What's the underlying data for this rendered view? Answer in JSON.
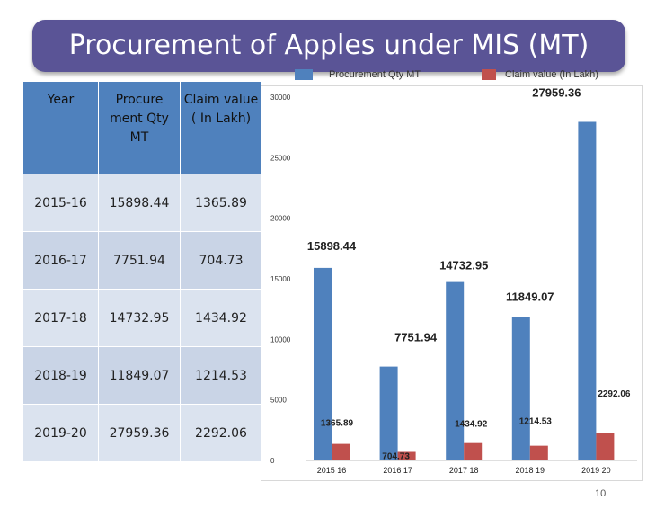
{
  "title": "Procurement of Apples under MIS (MT)",
  "legend": [
    {
      "label": "Procurement Qty MT",
      "color": "#4f81bd"
    },
    {
      "label": "Claim value (In Lakh)",
      "color": "#c0504d"
    }
  ],
  "table": {
    "headers": [
      "Year",
      "Procure ment Qty MT",
      "Claim value ( In Lakh)"
    ],
    "rows": [
      [
        "2015-16",
        "15898.44",
        "1365.89"
      ],
      [
        "2016-17",
        "7751.94",
        "704.73"
      ],
      [
        "2017-18",
        "14732.95",
        "1434.92"
      ],
      [
        "2018-19",
        "11849.07",
        "1214.53"
      ],
      [
        "2019-20",
        "27959.36",
        "2292.06"
      ]
    ]
  },
  "chart_data": {
    "type": "bar",
    "title": "",
    "xlabel": "",
    "ylabel": "",
    "categories": [
      "2015 16",
      "2016 17",
      "2017 18",
      "2018 19",
      "2019 20"
    ],
    "series": [
      {
        "name": "Procurement Qty MT",
        "values": [
          15898.44,
          7751.94,
          14732.95,
          11849.07,
          27959.36
        ],
        "labels": [
          "15898.44",
          "7751.94",
          "14732.95",
          "11849.07",
          "27959.36"
        ],
        "color": "#4f81bd"
      },
      {
        "name": "Claim value (In Lakh)",
        "values": [
          1365.89,
          704.73,
          1434.92,
          1214.53,
          2292.06
        ],
        "labels": [
          "1365.89",
          "704.73",
          "1434.92",
          "1214.53",
          "2292.06"
        ],
        "color": "#c0504d"
      }
    ],
    "ylim": [
      0,
      30000
    ],
    "yticks": [
      "0",
      "5000",
      "10000",
      "15000",
      "20000",
      "25000",
      "30000"
    ],
    "grid": false,
    "legend_position": "top"
  },
  "page_number": "10"
}
